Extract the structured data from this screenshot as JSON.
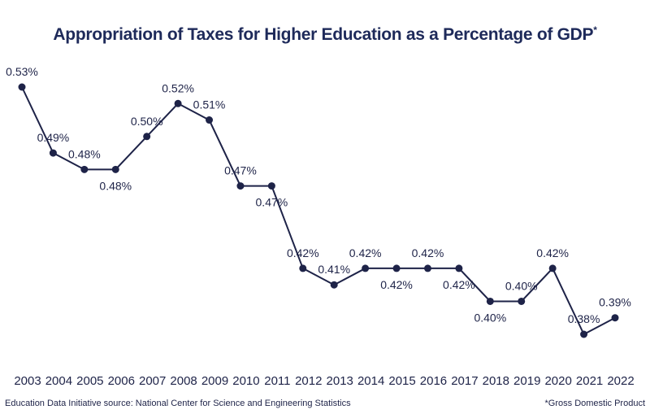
{
  "chart_data": {
    "type": "line",
    "title": "Appropriation of Taxes for Higher Education as a Percentage of GDP",
    "title_mark": "*",
    "categories": [
      "2003",
      "2004",
      "2005",
      "2006",
      "2007",
      "2008",
      "2009",
      "2010",
      "2011",
      "2012",
      "2013",
      "2014",
      "2015",
      "2016",
      "2017",
      "2018",
      "2019",
      "2020",
      "2021",
      "2022"
    ],
    "values": [
      0.53,
      0.49,
      0.48,
      0.48,
      0.5,
      0.52,
      0.51,
      0.47,
      0.47,
      0.42,
      0.41,
      0.42,
      0.42,
      0.42,
      0.42,
      0.4,
      0.4,
      0.42,
      0.38,
      0.39
    ],
    "data_labels": [
      "0.53%",
      "0.49%",
      "0.48%",
      "0.48%",
      "0.50%",
      "0.52%",
      "0.51%",
      "0.47%",
      "0.47%",
      "0.42%",
      "0.41%",
      "0.42%",
      "0.42%",
      "0.42%",
      "0.42%",
      "0.40%",
      "0.40%",
      "0.42%",
      "0.38%",
      "0.39%"
    ],
    "unit": "%",
    "xlabel": "",
    "ylabel": "",
    "grid": false,
    "line_color": "#1e2348"
  },
  "footer": {
    "source": "Education Data Initiative source: National Center for Science and Engineering Statistics",
    "note": "*Gross Domestic Product"
  }
}
